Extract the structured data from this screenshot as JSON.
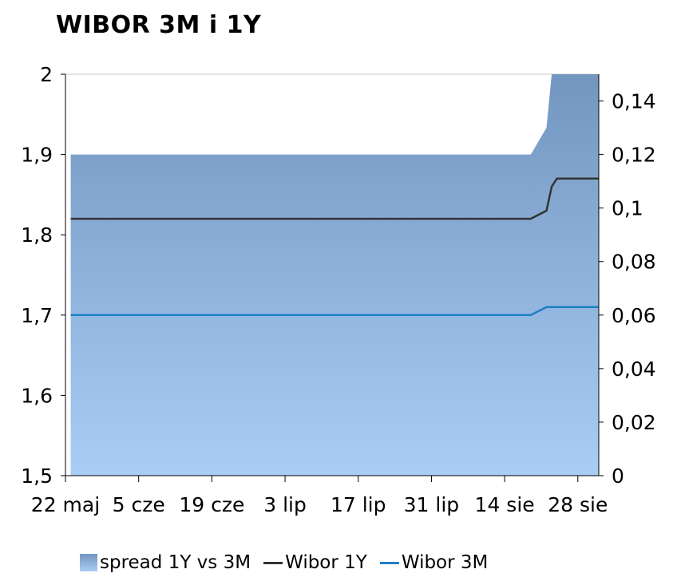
{
  "chart_data": {
    "type": "area",
    "title": "WIBOR 3M i 1Y",
    "x_tick_labels": [
      "22 maj",
      "5 cze",
      "19 cze",
      "3 lip",
      "17 lip",
      "31 lip",
      "14 sie",
      "28 sie"
    ],
    "x_range": [
      "2013-05-22",
      "2013-09-01"
    ],
    "y_left": {
      "range": [
        1.5,
        2.0
      ],
      "ticks": [
        "1,5",
        "1,6",
        "1,7",
        "1,8",
        "1,9",
        "2"
      ]
    },
    "y_right": {
      "range": [
        0,
        0.15
      ],
      "ticks": [
        "0",
        "0,02",
        "0,04",
        "0,06",
        "0,08",
        "0,1",
        "0,12",
        "0,14"
      ]
    },
    "grid": false,
    "legend_position": "bottom",
    "series": [
      {
        "name": "spread 1Y vs 3M",
        "kind": "area",
        "axis": "right",
        "color_top": "#7396c0",
        "color_bottom": "#a9cdf5",
        "points": [
          [
            "2013-05-23",
            0.12
          ],
          [
            "2013-08-19",
            0.12
          ],
          [
            "2013-08-22",
            0.13
          ],
          [
            "2013-08-23",
            0.15
          ],
          [
            "2013-09-01",
            0.15
          ]
        ]
      },
      {
        "name": "Wibor 1Y",
        "kind": "line",
        "axis": "left",
        "color": "#333333",
        "points": [
          [
            "2013-05-23",
            1.82
          ],
          [
            "2013-08-19",
            1.82
          ],
          [
            "2013-08-22",
            1.83
          ],
          [
            "2013-08-23",
            1.86
          ],
          [
            "2013-08-24",
            1.87
          ],
          [
            "2013-09-01",
            1.87
          ]
        ]
      },
      {
        "name": "Wibor 3M",
        "kind": "line",
        "axis": "left",
        "color": "#1f7fc4",
        "points": [
          [
            "2013-05-23",
            1.7
          ],
          [
            "2013-08-19",
            1.7
          ],
          [
            "2013-08-22",
            1.71
          ],
          [
            "2013-09-01",
            1.71
          ]
        ]
      }
    ]
  }
}
